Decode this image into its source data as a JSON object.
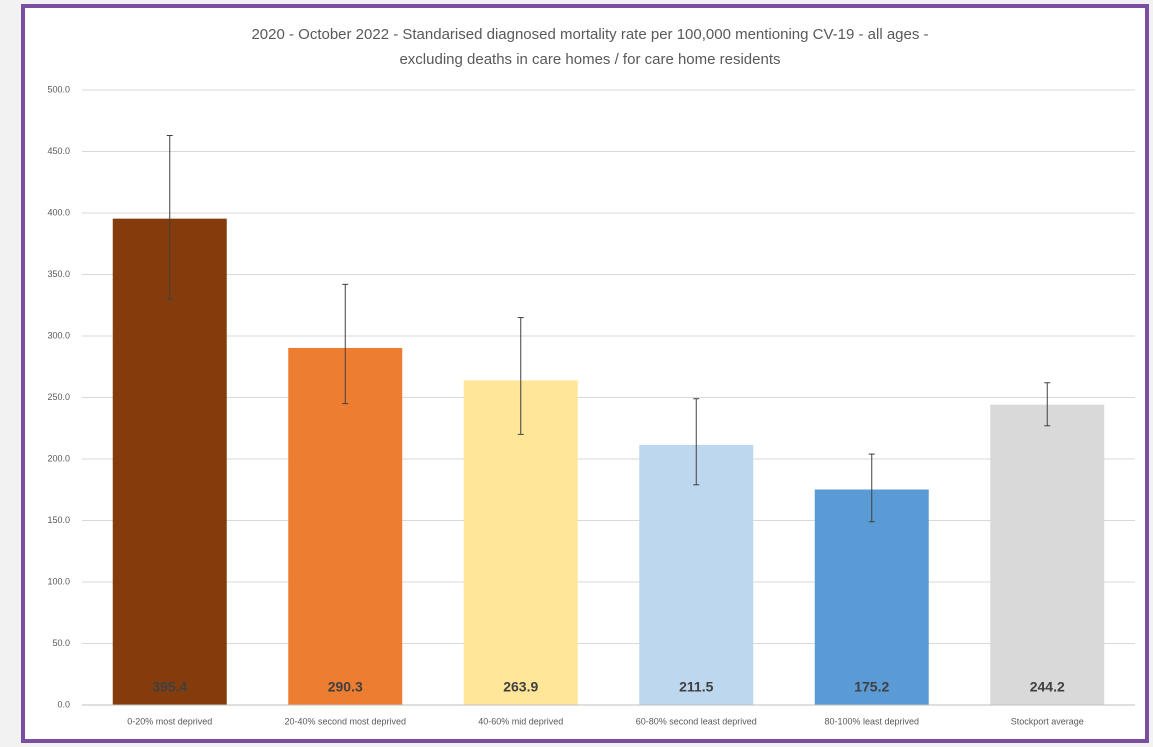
{
  "chart_data": {
    "type": "bar",
    "title": "2020 - October 2022 - Standarised diagnosed mortality rate per 100,000 mentioning CV-19 - all ages -",
    "subtitle": "excluding deaths in care homes / for care home residents",
    "categories": [
      "0-20% most deprived",
      "20-40% second most deprived",
      "40-60% mid deprived",
      "60-80% second least deprived",
      "80-100% least deprived",
      "Stockport average"
    ],
    "values": [
      395.4,
      290.3,
      263.9,
      211.5,
      175.2,
      244.2
    ],
    "ci_lower": [
      330,
      245,
      220,
      179,
      149,
      227
    ],
    "ci_upper": [
      463,
      342,
      315,
      249,
      204,
      262
    ],
    "colors": [
      "#843c0c",
      "#ed7d31",
      "#ffe699",
      "#bdd7ee",
      "#5b9bd5",
      "#d9d9d9"
    ],
    "ylim": [
      0,
      500
    ],
    "yticks": [
      {
        "value": 0,
        "label": "0.0"
      },
      {
        "value": 50,
        "label": "50.0"
      },
      {
        "value": 100,
        "label": "100.0"
      },
      {
        "value": 150,
        "label": "150.0"
      },
      {
        "value": 200,
        "label": "200.0"
      },
      {
        "value": 250,
        "label": "250.0"
      },
      {
        "value": 300,
        "label": "300.0"
      },
      {
        "value": 350,
        "label": "350.0"
      },
      {
        "value": 400,
        "label": "400.0"
      },
      {
        "value": 450,
        "label": "450.0"
      },
      {
        "value": 500,
        "label": "500.0"
      }
    ],
    "grid": true
  }
}
